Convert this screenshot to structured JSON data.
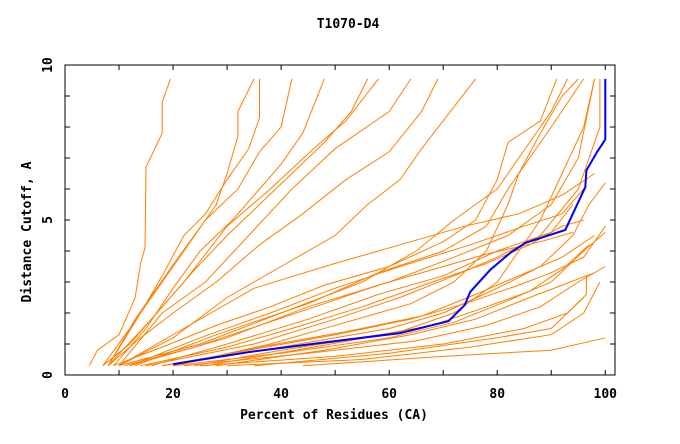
{
  "chart_data": {
    "type": "line",
    "title": "T1070-D4",
    "xlabel": "Percent of Residues (CA)",
    "ylabel": "Distance Cutoff, A",
    "xlim": [
      0,
      101.8
    ],
    "ylim": [
      0,
      10
    ],
    "x_ticks": [
      0,
      20,
      40,
      60,
      80,
      100
    ],
    "y_ticks": [
      0,
      5,
      10
    ],
    "grid": false,
    "colors": {
      "models": "#ff8000",
      "highlight": "#0000ff",
      "axes": "#000000"
    },
    "highlight_series": [
      [
        20,
        0.35
      ],
      [
        34,
        0.74
      ],
      [
        47,
        1.03
      ],
      [
        62,
        1.35
      ],
      [
        71,
        1.74
      ],
      [
        74,
        2.26
      ],
      [
        75,
        2.68
      ],
      [
        78.7,
        3.39
      ],
      [
        82.4,
        3.94
      ],
      [
        85.2,
        4.26
      ],
      [
        92.6,
        4.68
      ],
      [
        96.3,
        6.06
      ],
      [
        96.5,
        6.6
      ],
      [
        98.5,
        7.2
      ],
      [
        100,
        7.6
      ],
      [
        100,
        9.55
      ]
    ],
    "series": [
      [
        [
          4.5,
          0.3
        ],
        [
          6,
          0.8
        ],
        [
          10,
          1.3
        ],
        [
          13,
          2.5
        ],
        [
          14,
          3.6
        ],
        [
          14.8,
          4.1
        ],
        [
          15,
          6.7
        ],
        [
          18,
          7.8
        ],
        [
          18,
          8.8
        ],
        [
          19.5,
          9.55
        ]
      ],
      [
        [
          7,
          0.3
        ],
        [
          12,
          1.5
        ],
        [
          16,
          2.5
        ],
        [
          20,
          3.5
        ],
        [
          24,
          4.5
        ],
        [
          28,
          5.5
        ],
        [
          30,
          6.5
        ],
        [
          32,
          7.7
        ],
        [
          32,
          8.5
        ],
        [
          35,
          9.55
        ]
      ],
      [
        [
          8,
          0.3
        ],
        [
          14,
          2
        ],
        [
          18,
          3.2
        ],
        [
          22,
          4.5
        ],
        [
          26,
          5.2
        ],
        [
          30,
          6.3
        ],
        [
          34,
          7.3
        ],
        [
          36,
          8.3
        ],
        [
          36,
          9.55
        ]
      ],
      [
        [
          8,
          0.3
        ],
        [
          13,
          1.8
        ],
        [
          17,
          2.8
        ],
        [
          21,
          3.8
        ],
        [
          26,
          5
        ],
        [
          32,
          6
        ],
        [
          36,
          7.2
        ],
        [
          40,
          8
        ],
        [
          42,
          9.55
        ]
      ],
      [
        [
          9,
          0.3
        ],
        [
          15,
          1.5
        ],
        [
          20,
          2.8
        ],
        [
          25,
          4
        ],
        [
          31,
          5
        ],
        [
          36,
          6
        ],
        [
          40,
          6.8
        ],
        [
          44,
          7.8
        ],
        [
          48,
          9.55
        ]
      ],
      [
        [
          7,
          0.3
        ],
        [
          12,
          1
        ],
        [
          18,
          2.2
        ],
        [
          24,
          3.4
        ],
        [
          30,
          4.5
        ],
        [
          36,
          5.5
        ],
        [
          42,
          6.5
        ],
        [
          48,
          7.5
        ],
        [
          53,
          8.5
        ],
        [
          56,
          9.55
        ]
      ],
      [
        [
          8,
          0.3
        ],
        [
          16,
          1.8
        ],
        [
          22,
          3
        ],
        [
          30,
          4.8
        ],
        [
          38,
          6
        ],
        [
          46,
          7.3
        ],
        [
          52,
          8.2
        ],
        [
          58,
          9.55
        ]
      ],
      [
        [
          10,
          0.3
        ],
        [
          18,
          2
        ],
        [
          26,
          3
        ],
        [
          34,
          4.5
        ],
        [
          42,
          6
        ],
        [
          50,
          7.3
        ],
        [
          60,
          8.5
        ],
        [
          64,
          9.55
        ]
      ],
      [
        [
          8,
          0.3
        ],
        [
          14,
          1.2
        ],
        [
          20,
          2
        ],
        [
          28,
          3
        ],
        [
          36,
          4.2
        ],
        [
          44,
          5.2
        ],
        [
          52,
          6.3
        ],
        [
          60,
          7.2
        ],
        [
          66,
          8.5
        ],
        [
          69,
          9.55
        ]
      ],
      [
        [
          10,
          0.3
        ],
        [
          20,
          1.2
        ],
        [
          30,
          2.5
        ],
        [
          40,
          3.5
        ],
        [
          50,
          4.5
        ],
        [
          56,
          5.5
        ],
        [
          62,
          6.3
        ],
        [
          66,
          7.3
        ],
        [
          70,
          8.2
        ],
        [
          76,
          9.55
        ]
      ],
      [
        [
          10,
          0.3
        ],
        [
          25,
          1
        ],
        [
          40,
          2
        ],
        [
          55,
          3
        ],
        [
          65,
          4
        ],
        [
          72,
          5
        ],
        [
          80,
          6
        ],
        [
          86,
          7.5
        ],
        [
          90,
          8.5
        ],
        [
          93,
          9.55
        ]
      ],
      [
        [
          12,
          0.3
        ],
        [
          30,
          1.2
        ],
        [
          45,
          2.2
        ],
        [
          60,
          3
        ],
        [
          72,
          3.8
        ],
        [
          82,
          4.5
        ],
        [
          90,
          5.5
        ],
        [
          95,
          7
        ],
        [
          98,
          9.55
        ]
      ],
      [
        [
          15,
          0.3
        ],
        [
          35,
          1
        ],
        [
          50,
          1.8
        ],
        [
          62,
          2.5
        ],
        [
          72,
          3.2
        ],
        [
          80,
          3.8
        ],
        [
          88,
          4.5
        ],
        [
          95,
          6
        ],
        [
          99,
          8
        ],
        [
          99,
          9.55
        ]
      ],
      [
        [
          18,
          0.3
        ],
        [
          40,
          0.9
        ],
        [
          60,
          1.5
        ],
        [
          70,
          2
        ],
        [
          80,
          2.8
        ],
        [
          88,
          3.5
        ],
        [
          94,
          4.5
        ],
        [
          97,
          5.5
        ],
        [
          100,
          6.2
        ]
      ],
      [
        [
          20,
          0.3
        ],
        [
          40,
          0.7
        ],
        [
          60,
          1.2
        ],
        [
          72,
          1.7
        ],
        [
          82,
          2.4
        ],
        [
          90,
          3
        ],
        [
          96,
          4
        ],
        [
          100,
          4.6
        ]
      ],
      [
        [
          22,
          0.3
        ],
        [
          45,
          0.7
        ],
        [
          65,
          1.1
        ],
        [
          78,
          1.6
        ],
        [
          88,
          2.2
        ],
        [
          95,
          3
        ],
        [
          100,
          3.5
        ]
      ],
      [
        [
          25,
          0.3
        ],
        [
          50,
          0.6
        ],
        [
          70,
          1
        ],
        [
          85,
          1.5
        ],
        [
          93,
          2
        ],
        [
          96.5,
          2.6
        ],
        [
          96.5,
          3.2
        ]
      ],
      [
        [
          30,
          0.3
        ],
        [
          55,
          0.5
        ],
        [
          75,
          0.9
        ],
        [
          90,
          1.3
        ],
        [
          96,
          2
        ],
        [
          99,
          3
        ]
      ],
      [
        [
          44,
          0.3
        ],
        [
          70,
          0.6
        ],
        [
          90,
          0.8
        ],
        [
          100,
          1.2
        ]
      ],
      [
        [
          35,
          0.3
        ],
        [
          60,
          0.7
        ],
        [
          80,
          1.2
        ],
        [
          90,
          1.5
        ],
        [
          96,
          2.5
        ]
      ],
      [
        [
          12,
          0.3
        ],
        [
          25,
          1.2
        ],
        [
          38,
          2
        ],
        [
          50,
          2.8
        ],
        [
          62,
          3.5
        ],
        [
          75,
          4.2
        ],
        [
          85,
          4.8
        ],
        [
          92,
          5.2
        ],
        [
          96,
          6
        ]
      ],
      [
        [
          16,
          0.3
        ],
        [
          30,
          1
        ],
        [
          45,
          1.8
        ],
        [
          58,
          2.6
        ],
        [
          70,
          3.2
        ],
        [
          80,
          4
        ],
        [
          90,
          4.6
        ],
        [
          94,
          5.5
        ]
      ],
      [
        [
          14,
          0.3
        ],
        [
          30,
          0.9
        ],
        [
          42,
          1.5
        ],
        [
          55,
          2.2
        ],
        [
          68,
          3
        ],
        [
          78,
          3.6
        ],
        [
          86,
          4.2
        ],
        [
          92,
          4.8
        ],
        [
          96,
          5
        ]
      ],
      [
        [
          10,
          0.3
        ],
        [
          22,
          1.5
        ],
        [
          35,
          2.8
        ],
        [
          50,
          3.6
        ],
        [
          62,
          4.2
        ],
        [
          74,
          4.8
        ],
        [
          84,
          5.2
        ],
        [
          92,
          5.8
        ],
        [
          98,
          6.5
        ]
      ],
      [
        [
          20,
          0.3
        ],
        [
          36,
          0.9
        ],
        [
          52,
          1.4
        ],
        [
          66,
          1.9
        ],
        [
          76,
          2.6
        ],
        [
          84,
          3.2
        ],
        [
          92,
          3.8
        ],
        [
          98,
          4.5
        ]
      ],
      [
        [
          24,
          0.3
        ],
        [
          40,
          0.8
        ],
        [
          55,
          1.2
        ],
        [
          68,
          1.6
        ],
        [
          78,
          2.2
        ],
        [
          86,
          2.7
        ],
        [
          92,
          3.4
        ],
        [
          97,
          4.2
        ]
      ],
      [
        [
          18,
          0.3
        ],
        [
          34,
          0.8
        ],
        [
          50,
          1.3
        ],
        [
          64,
          1.8
        ],
        [
          74,
          2.3
        ],
        [
          84,
          2.9
        ],
        [
          90,
          3.3
        ],
        [
          96,
          3.8
        ],
        [
          100,
          4.8
        ]
      ],
      [
        [
          13,
          0.3
        ],
        [
          28,
          1.3
        ],
        [
          45,
          2.3
        ],
        [
          58,
          3.3
        ],
        [
          70,
          4
        ],
        [
          78,
          4.8
        ],
        [
          82,
          6
        ],
        [
          86,
          7
        ],
        [
          90,
          8
        ],
        [
          96,
          9.55
        ]
      ],
      [
        [
          20,
          0.3
        ],
        [
          38,
          1
        ],
        [
          52,
          1.7
        ],
        [
          64,
          2.3
        ],
        [
          72,
          3
        ],
        [
          78,
          4
        ],
        [
          82,
          5.5
        ],
        [
          84,
          6.5
        ],
        [
          88,
          7.8
        ],
        [
          92,
          9
        ],
        [
          95,
          9.55
        ]
      ],
      [
        [
          26,
          0.3
        ],
        [
          46,
          0.9
        ],
        [
          62,
          1.4
        ],
        [
          72,
          2
        ],
        [
          80,
          3
        ],
        [
          84,
          4
        ],
        [
          88,
          5
        ],
        [
          92,
          6.5
        ],
        [
          96,
          8
        ],
        [
          98,
          9.55
        ]
      ],
      [
        [
          11,
          0.3
        ],
        [
          24,
          0.9
        ],
        [
          36,
          1.6
        ],
        [
          48,
          2.3
        ],
        [
          58,
          2.9
        ],
        [
          68,
          3.4
        ],
        [
          78,
          3.9
        ],
        [
          88,
          4.3
        ],
        [
          94,
          4.6
        ]
      ],
      [
        [
          28,
          0.3
        ],
        [
          48,
          0.8
        ],
        [
          64,
          1.3
        ],
        [
          76,
          1.8
        ],
        [
          86,
          2.5
        ],
        [
          92,
          2.9
        ],
        [
          98,
          3.3
        ]
      ],
      [
        [
          9,
          0.3
        ],
        [
          18,
          0.9
        ],
        [
          28,
          1.6
        ],
        [
          38,
          2.2
        ],
        [
          48,
          2.9
        ],
        [
          60,
          3.5
        ],
        [
          70,
          4.3
        ],
        [
          76,
          5
        ],
        [
          80,
          6.3
        ],
        [
          82,
          7.5
        ],
        [
          88,
          8.2
        ],
        [
          91,
          9.55
        ]
      ]
    ]
  }
}
